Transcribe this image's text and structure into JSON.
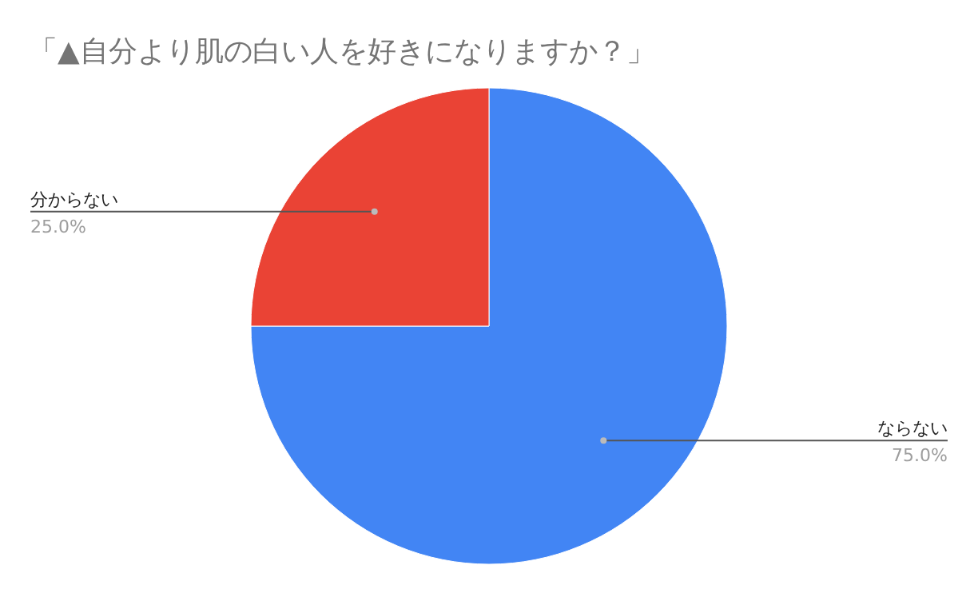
{
  "chart_data": {
    "type": "pie",
    "title": "「▲自分より肌の白い人を好きになりますか？」",
    "categories": [
      "ならない",
      "分からない"
    ],
    "values": [
      75,
      25
    ],
    "colors": [
      "#4285f4",
      "#ea4335"
    ],
    "value_labels": [
      "75.0%",
      "25.0%"
    ],
    "legend": false
  }
}
